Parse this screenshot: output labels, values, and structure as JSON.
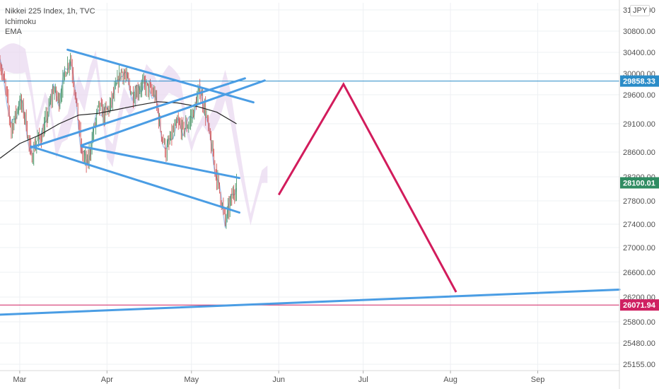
{
  "header": {
    "symbol": "Nikkei 225 Index, 1h, TVC",
    "indicators": [
      "Ichimoku",
      "EMA"
    ],
    "currency": "JPY"
  },
  "colors": {
    "trendline": "#4a9de4",
    "projection": "#d21c5c",
    "price_line": "#2a8cc8",
    "support_line": "#cf2061",
    "last_price": "#2f8c62",
    "ema": "#222222",
    "candle_up": "#3b8d5a",
    "candle_down": "#d04545",
    "cloud": "#ead9f0",
    "kijun": "#a7c7f0",
    "grid": "#eef0f3",
    "axis_text": "#505050"
  },
  "chart_data": {
    "type": "line",
    "x_ticks": [
      "Mar",
      "Apr",
      "May",
      "Jun",
      "Jul",
      "Aug",
      "Sep"
    ],
    "y_ticks": [
      31200,
      30800,
      30400,
      30000,
      29600,
      29100,
      28600,
      28200,
      27800,
      27400,
      27000,
      26600,
      26200,
      25800,
      25480,
      25155
    ],
    "y_tick_labels": [
      "31200.00",
      "30800.00",
      "30400.00",
      "30000.00",
      "29600.00",
      "29100.00",
      "28600.00",
      "28200.00",
      "27800.00",
      "27400.00",
      "27000.00",
      "26600.00",
      "26200.00",
      "25800.00",
      "25480.00",
      "25155.00"
    ],
    "price_labels": [
      {
        "value": 29858.33,
        "label": "29858.33",
        "role": "horizontal-line"
      },
      {
        "value": 28100.01,
        "label": "28100.01",
        "role": "last-price"
      },
      {
        "value": 26071.94,
        "label": "26071.94",
        "role": "horizontal-line"
      }
    ],
    "price_path": [
      [
        "2021-02-22",
        30200
      ],
      [
        "2021-02-24",
        29700
      ],
      [
        "2021-02-26",
        29000
      ],
      [
        "2021-03-01",
        29500
      ],
      [
        "2021-03-03",
        29200
      ],
      [
        "2021-03-05",
        28500
      ],
      [
        "2021-03-07",
        28800
      ],
      [
        "2021-03-09",
        28900
      ],
      [
        "2021-03-11",
        29300
      ],
      [
        "2021-03-13",
        29700
      ],
      [
        "2021-03-15",
        29500
      ],
      [
        "2021-03-17",
        30000
      ],
      [
        "2021-03-19",
        30300
      ],
      [
        "2021-03-21",
        29500
      ],
      [
        "2021-03-23",
        28600
      ],
      [
        "2021-03-25",
        28400
      ],
      [
        "2021-03-27",
        28900
      ],
      [
        "2021-03-29",
        29400
      ],
      [
        "2021-03-31",
        29250
      ],
      [
        "2021-04-02",
        29400
      ],
      [
        "2021-04-04",
        29700
      ],
      [
        "2021-04-06",
        30050
      ],
      [
        "2021-04-08",
        29900
      ],
      [
        "2021-04-10",
        29600
      ],
      [
        "2021-04-12",
        29700
      ],
      [
        "2021-04-14",
        29800
      ],
      [
        "2021-04-16",
        29700
      ],
      [
        "2021-04-18",
        29600
      ],
      [
        "2021-04-20",
        29000
      ],
      [
        "2021-04-22",
        28600
      ],
      [
        "2021-04-24",
        28900
      ],
      [
        "2021-04-26",
        29100
      ],
      [
        "2021-04-28",
        29000
      ],
      [
        "2021-04-30",
        29100
      ],
      [
        "2021-05-02",
        29350
      ],
      [
        "2021-05-04",
        29700
      ],
      [
        "2021-05-06",
        29300
      ],
      [
        "2021-05-08",
        28700
      ],
      [
        "2021-05-10",
        28200
      ],
      [
        "2021-05-12",
        27700
      ],
      [
        "2021-05-13",
        27450
      ],
      [
        "2021-05-15",
        27800
      ],
      [
        "2021-05-17",
        28100
      ]
    ],
    "ema_path": [
      [
        "2021-02-22",
        28500
      ],
      [
        "2021-03-01",
        28750
      ],
      [
        "2021-03-08",
        28900
      ],
      [
        "2021-03-15",
        29100
      ],
      [
        "2021-03-22",
        29250
      ],
      [
        "2021-03-29",
        29280
      ],
      [
        "2021-04-05",
        29350
      ],
      [
        "2021-04-12",
        29420
      ],
      [
        "2021-04-19",
        29480
      ],
      [
        "2021-04-26",
        29460
      ],
      [
        "2021-05-03",
        29400
      ],
      [
        "2021-05-10",
        29300
      ],
      [
        "2021-05-17",
        29100
      ]
    ],
    "trendlines": [
      {
        "name": "upper-wedge-line",
        "points": [
          [
            "2021-03-18",
            30450
          ],
          [
            "2021-05-23",
            29470
          ]
        ]
      },
      {
        "name": "lower-channel-line",
        "points": [
          [
            "2021-03-05",
            28700
          ],
          [
            "2021-05-18",
            27600
          ]
        ]
      },
      {
        "name": "middle-channel-line",
        "points": [
          [
            "2021-03-23",
            28700
          ],
          [
            "2021-05-18",
            28180
          ]
        ]
      },
      {
        "name": "rising-line-a",
        "points": [
          [
            "2021-03-05",
            28680
          ],
          [
            "2021-05-20",
            29910
          ]
        ]
      },
      {
        "name": "rising-line-b",
        "points": [
          [
            "2021-03-23",
            28720
          ],
          [
            "2021-05-27",
            29870
          ]
        ]
      },
      {
        "name": "long-term-support",
        "points": [
          [
            "2021-02-22",
            25915
          ],
          [
            "2021-09-30",
            26320
          ]
        ]
      }
    ],
    "projection": [
      [
        "2021-06-01",
        27900
      ],
      [
        "2021-06-24",
        29800
      ],
      [
        "2021-08-03",
        26280
      ]
    ],
    "xlim": [
      "2021-02-22",
      "2021-09-30"
    ],
    "ylim": [
      25100,
      31300
    ],
    "grid": true,
    "legend": "none"
  }
}
